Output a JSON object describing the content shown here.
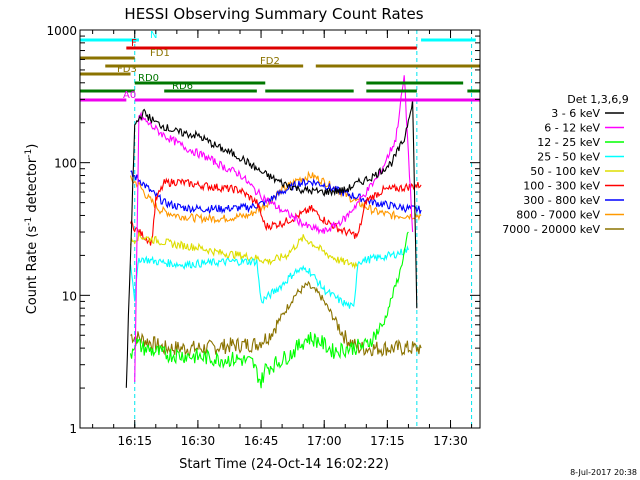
{
  "chart_data": {
    "type": "line",
    "title": "HESSI Observing Summary Count Rates",
    "xlabel": "Start Time (24-Oct-14 16:02:22)",
    "ylabel_main": "Count Rate (s",
    "ylabel_sup1": "-1",
    "ylabel_mid": " detector",
    "ylabel_sup2": "-1",
    "ylabel_end": ")",
    "yscale": "log",
    "ylim": [
      1,
      1000
    ],
    "xlim": [
      "16:02",
      "17:37"
    ],
    "x_ticks": [
      "16:15",
      "16:30",
      "16:45",
      "17:00",
      "17:15",
      "17:30"
    ],
    "y_ticks": [
      "1",
      "10",
      "100",
      "1000"
    ],
    "legend_title": "Det 1,3,6,9",
    "legend_placement": "right",
    "footer_date": "8-Jul-2017 20:38",
    "series": [
      {
        "name": "3 - 6 keV",
        "color": "#000000",
        "points": [
          [
            "16:13",
            2
          ],
          [
            "16:15",
            190
          ],
          [
            "16:17",
            240
          ],
          [
            "16:20",
            200
          ],
          [
            "16:25",
            170
          ],
          [
            "16:30",
            160
          ],
          [
            "16:35",
            130
          ],
          [
            "16:40",
            110
          ],
          [
            "16:45",
            85
          ],
          [
            "16:50",
            70
          ],
          [
            "16:55",
            62
          ],
          [
            "17:00",
            60
          ],
          [
            "17:05",
            62
          ],
          [
            "17:08",
            70
          ],
          [
            "17:12",
            80
          ],
          [
            "17:16",
            100
          ],
          [
            "17:19",
            150
          ],
          [
            "17:21",
            300
          ],
          [
            "17:22",
            8
          ]
        ]
      },
      {
        "name": "6 - 12 keV",
        "color": "#ff00ff",
        "points": [
          [
            "16:15",
            2
          ],
          [
            "16:16",
            230
          ],
          [
            "16:18",
            200
          ],
          [
            "16:22",
            160
          ],
          [
            "16:27",
            130
          ],
          [
            "16:32",
            110
          ],
          [
            "16:37",
            90
          ],
          [
            "16:40",
            82
          ],
          [
            "16:44",
            60
          ],
          [
            "16:48",
            48
          ],
          [
            "16:52",
            40
          ],
          [
            "16:56",
            33
          ],
          [
            "17:00",
            30
          ],
          [
            "17:05",
            38
          ],
          [
            "17:09",
            55
          ],
          [
            "17:13",
            80
          ],
          [
            "17:17",
            150
          ],
          [
            "17:19",
            450
          ],
          [
            "17:21",
            30
          ]
        ]
      },
      {
        "name": "12 - 25 keV",
        "color": "#00ff00",
        "points": [
          [
            "16:14",
            3.5
          ],
          [
            "16:15",
            4.5
          ],
          [
            "16:17",
            4
          ],
          [
            "16:22",
            3.6
          ],
          [
            "16:28",
            3.5
          ],
          [
            "16:35",
            3.3
          ],
          [
            "16:40",
            3.3
          ],
          [
            "16:43",
            3.1
          ],
          [
            "16:45",
            2.2
          ],
          [
            "16:46",
            2.8
          ],
          [
            "16:48",
            3
          ],
          [
            "16:52",
            3.6
          ],
          [
            "16:56",
            4.8
          ],
          [
            "16:59",
            4.5
          ],
          [
            "17:02",
            3.8
          ],
          [
            "17:06",
            4
          ],
          [
            "17:10",
            4.2
          ],
          [
            "17:14",
            6
          ],
          [
            "17:18",
            15
          ],
          [
            "17:20",
            30
          ]
        ]
      },
      {
        "name": "25 - 50 keV",
        "color": "#00ffff",
        "points": [
          [
            "16:14",
            18
          ],
          [
            "16:15",
            9.5
          ],
          [
            "16:16",
            19
          ],
          [
            "16:20",
            18
          ],
          [
            "16:26",
            17
          ],
          [
            "16:32",
            17.5
          ],
          [
            "16:38",
            18
          ],
          [
            "16:44",
            18
          ],
          [
            "16:45",
            9
          ],
          [
            "16:47",
            10
          ],
          [
            "16:50",
            12
          ],
          [
            "16:53",
            15
          ],
          [
            "16:56",
            16
          ],
          [
            "17:00",
            11
          ],
          [
            "17:04",
            9
          ],
          [
            "17:07",
            8
          ],
          [
            "17:08",
            18
          ],
          [
            "17:12",
            19
          ],
          [
            "17:16",
            20
          ],
          [
            "17:20",
            22
          ]
        ]
      },
      {
        "name": "50 - 100 keV",
        "color": "#dddd00",
        "points": [
          [
            "16:14",
            25
          ],
          [
            "16:16",
            28
          ],
          [
            "16:20",
            26
          ],
          [
            "16:25",
            24
          ],
          [
            "16:30",
            23
          ],
          [
            "16:35",
            21
          ],
          [
            "16:40",
            20
          ],
          [
            "16:44",
            19
          ],
          [
            "16:47",
            18
          ],
          [
            "16:51",
            20
          ],
          [
            "16:55",
            27
          ],
          [
            "16:57",
            25
          ],
          [
            "17:00",
            21
          ],
          [
            "17:04",
            18
          ],
          [
            "17:08",
            17
          ]
        ]
      },
      {
        "name": "100 - 300 keV",
        "color": "#ff0000",
        "points": [
          [
            "16:14",
            35
          ],
          [
            "16:16",
            30
          ],
          [
            "16:19",
            25
          ],
          [
            "16:20",
            52
          ],
          [
            "16:22",
            70
          ],
          [
            "16:25",
            72
          ],
          [
            "16:30",
            68
          ],
          [
            "16:35",
            65
          ],
          [
            "16:40",
            62
          ],
          [
            "16:44",
            50
          ],
          [
            "16:46",
            33
          ],
          [
            "16:50",
            35
          ],
          [
            "16:54",
            40
          ],
          [
            "16:57",
            45
          ],
          [
            "17:00",
            37
          ],
          [
            "17:04",
            31
          ],
          [
            "17:08",
            28
          ],
          [
            "17:10",
            52
          ],
          [
            "17:14",
            62
          ],
          [
            "17:19",
            65
          ],
          [
            "17:23",
            68
          ]
        ]
      },
      {
        "name": "300 - 800 keV",
        "color": "#0000ff",
        "points": [
          [
            "16:14",
            82
          ],
          [
            "16:16",
            75
          ],
          [
            "16:19",
            60
          ],
          [
            "16:22",
            50
          ],
          [
            "16:26",
            46
          ],
          [
            "16:30",
            45
          ],
          [
            "16:36",
            45
          ],
          [
            "16:42",
            46
          ],
          [
            "16:46",
            50
          ],
          [
            "16:50",
            60
          ],
          [
            "16:54",
            70
          ],
          [
            "16:57",
            72
          ],
          [
            "17:00",
            68
          ],
          [
            "17:04",
            60
          ],
          [
            "17:08",
            55
          ],
          [
            "17:12",
            50
          ],
          [
            "17:18",
            46
          ],
          [
            "17:23",
            44
          ]
        ]
      },
      {
        "name": "800 - 7000 keV",
        "color": "#ff9900",
        "points": [
          [
            "16:14",
            75
          ],
          [
            "16:16",
            68
          ],
          [
            "16:18",
            55
          ],
          [
            "16:21",
            44
          ],
          [
            "16:25",
            40
          ],
          [
            "16:30",
            38
          ],
          [
            "16:36",
            38
          ],
          [
            "16:42",
            40
          ],
          [
            "16:46",
            48
          ],
          [
            "16:50",
            62
          ],
          [
            "16:54",
            75
          ],
          [
            "16:57",
            80
          ],
          [
            "17:00",
            72
          ],
          [
            "17:04",
            60
          ],
          [
            "17:08",
            50
          ],
          [
            "17:12",
            43
          ],
          [
            "17:16",
            40
          ],
          [
            "17:20",
            40
          ],
          [
            "17:23",
            40
          ]
        ]
      },
      {
        "name": "7000 - 20000 keV",
        "color": "#8b7300",
        "points": [
          [
            "16:14",
            5
          ],
          [
            "16:16",
            4.8
          ],
          [
            "16:18",
            4.5
          ],
          [
            "16:22",
            4
          ],
          [
            "16:26",
            4
          ],
          [
            "16:32",
            4
          ],
          [
            "16:38",
            4.2
          ],
          [
            "16:44",
            4.3
          ],
          [
            "16:47",
            5
          ],
          [
            "16:50",
            7
          ],
          [
            "16:53",
            10
          ],
          [
            "16:56",
            12
          ],
          [
            "16:59",
            10
          ],
          [
            "17:02",
            7
          ],
          [
            "17:05",
            4.8
          ],
          [
            "17:08",
            4
          ],
          [
            "17:14",
            4
          ],
          [
            "17:20",
            4
          ],
          [
            "17:23",
            4
          ]
        ]
      }
    ],
    "flags": [
      {
        "label": "N",
        "color": "#00ffff",
        "segments": [
          [
            "16:02",
            "16:16"
          ],
          [
            "17:23",
            "17:36"
          ]
        ]
      },
      {
        "label": "F",
        "color": "#dd0000",
        "segments": [
          [
            "16:13",
            "17:22"
          ]
        ]
      },
      {
        "label": "FD1",
        "color": "#8b7300",
        "segments": [
          [
            "16:02",
            "16:15"
          ]
        ]
      },
      {
        "label": "FD2",
        "color": "#8b7300",
        "segments": [
          [
            "16:08",
            "16:55"
          ],
          [
            "16:58",
            "17:37"
          ]
        ]
      },
      {
        "label": "FD3",
        "color": "#8b7300",
        "segments": [
          [
            "16:02",
            "16:14"
          ]
        ]
      },
      {
        "label": "RD0",
        "color": "#007700",
        "segments": [
          [
            "16:15",
            "16:46"
          ],
          [
            "17:10",
            "17:33"
          ]
        ]
      },
      {
        "label": "RD6",
        "color": "#007700",
        "segments": [
          [
            "16:02",
            "16:15"
          ],
          [
            "16:22",
            "16:44"
          ],
          [
            "16:46",
            "17:07"
          ],
          [
            "17:10",
            "17:22"
          ],
          [
            "17:34",
            "17:37"
          ]
        ]
      },
      {
        "label": "A0",
        "color": "#ee00ee",
        "segments": [
          [
            "16:02",
            "16:13"
          ],
          [
            "16:15",
            "17:37"
          ]
        ]
      }
    ]
  }
}
